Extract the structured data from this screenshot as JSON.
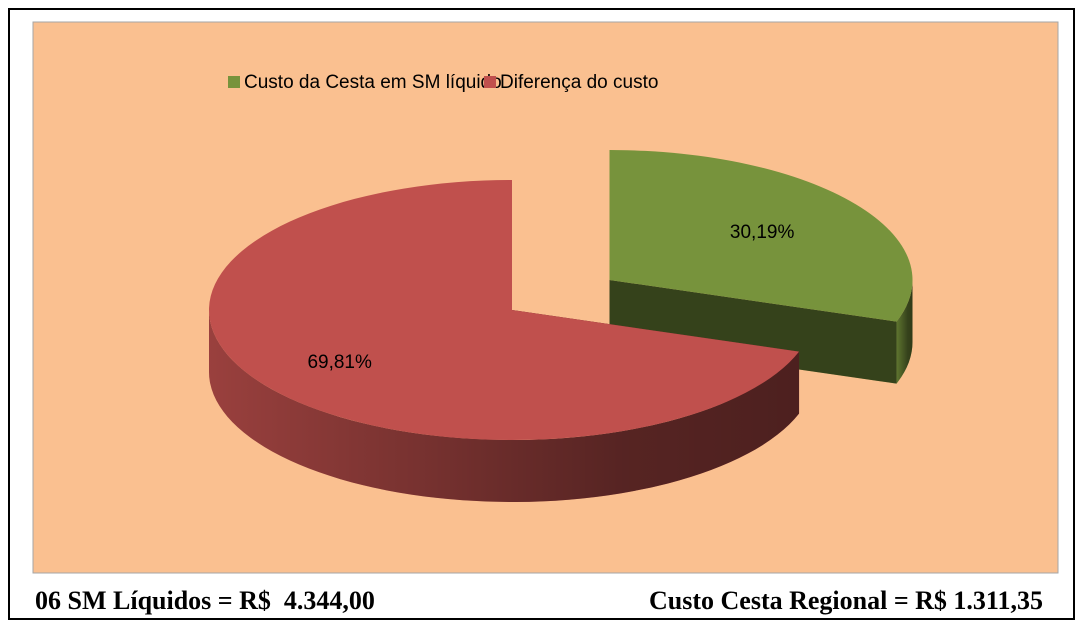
{
  "chart_data": {
    "type": "pie",
    "categories": [
      "Custo da Cesta em SM líquido",
      "Diferença do custo"
    ],
    "values": [
      30.19,
      69.81
    ],
    "value_labels": [
      "30,19%",
      "69,81%"
    ],
    "colors": [
      "#77933c",
      "#c0504d"
    ],
    "legend": "top"
  },
  "footer": {
    "left": "06 SM Líquidos = R$  4.344,00",
    "right": "Custo Cesta Regional = R$ 1.311,35"
  }
}
